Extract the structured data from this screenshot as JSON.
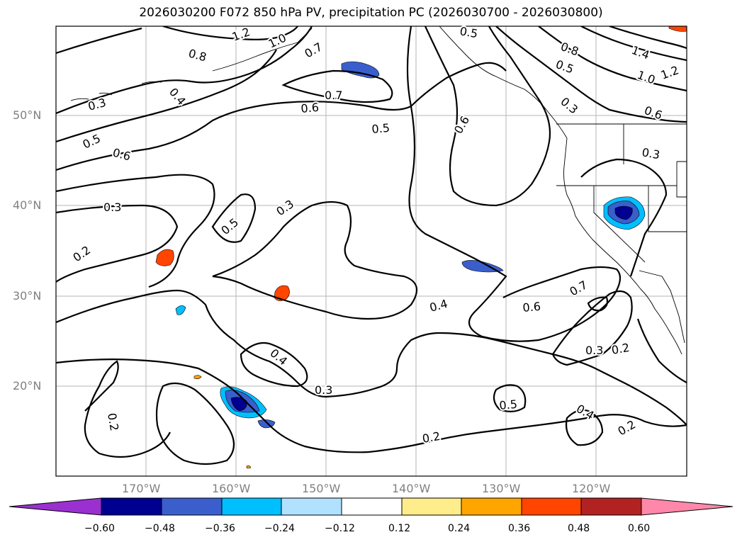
{
  "title": "2026030200 F072 850 hPa PV, precipitation PC (2026030700 - 2026030800)",
  "lat_labels": [
    "50°N",
    "40°N",
    "30°N",
    "20°N"
  ],
  "lon_labels": [
    "170°W",
    "160°W",
    "150°W",
    "140°W",
    "130°W",
    "120°W"
  ],
  "contour_labels": [
    "1.2",
    "1.0",
    "0.8",
    "0.4",
    "0.7",
    "0.7",
    "0.5",
    "0.3",
    "0.6",
    "0.5",
    "0.6",
    "0.5",
    "0.6",
    "0.3",
    "0.8",
    "0.5",
    "1.4",
    "1.0",
    "1.2",
    "0.6",
    "0.3",
    "0.3",
    "0.3",
    "0.2",
    "0.5",
    "0.4",
    "0.6",
    "0.7",
    "0.3",
    "0.2",
    "0.4",
    "0.3",
    "0.5",
    "0.2",
    "0.4",
    "0.2",
    "0.2"
  ],
  "colorbar": {
    "ticks": [
      "−0.60",
      "−0.48",
      "−0.36",
      "−0.24",
      "−0.12",
      "0.12",
      "0.24",
      "0.36",
      "0.48",
      "0.60"
    ],
    "colors": [
      "#9b30d0",
      "#000090",
      "#3a5fcd",
      "#00bfff",
      "#b0e2ff",
      "#ffffff",
      "#ffec8b",
      "#ffa500",
      "#ff4500",
      "#b22222",
      "#ff88aa"
    ]
  }
}
